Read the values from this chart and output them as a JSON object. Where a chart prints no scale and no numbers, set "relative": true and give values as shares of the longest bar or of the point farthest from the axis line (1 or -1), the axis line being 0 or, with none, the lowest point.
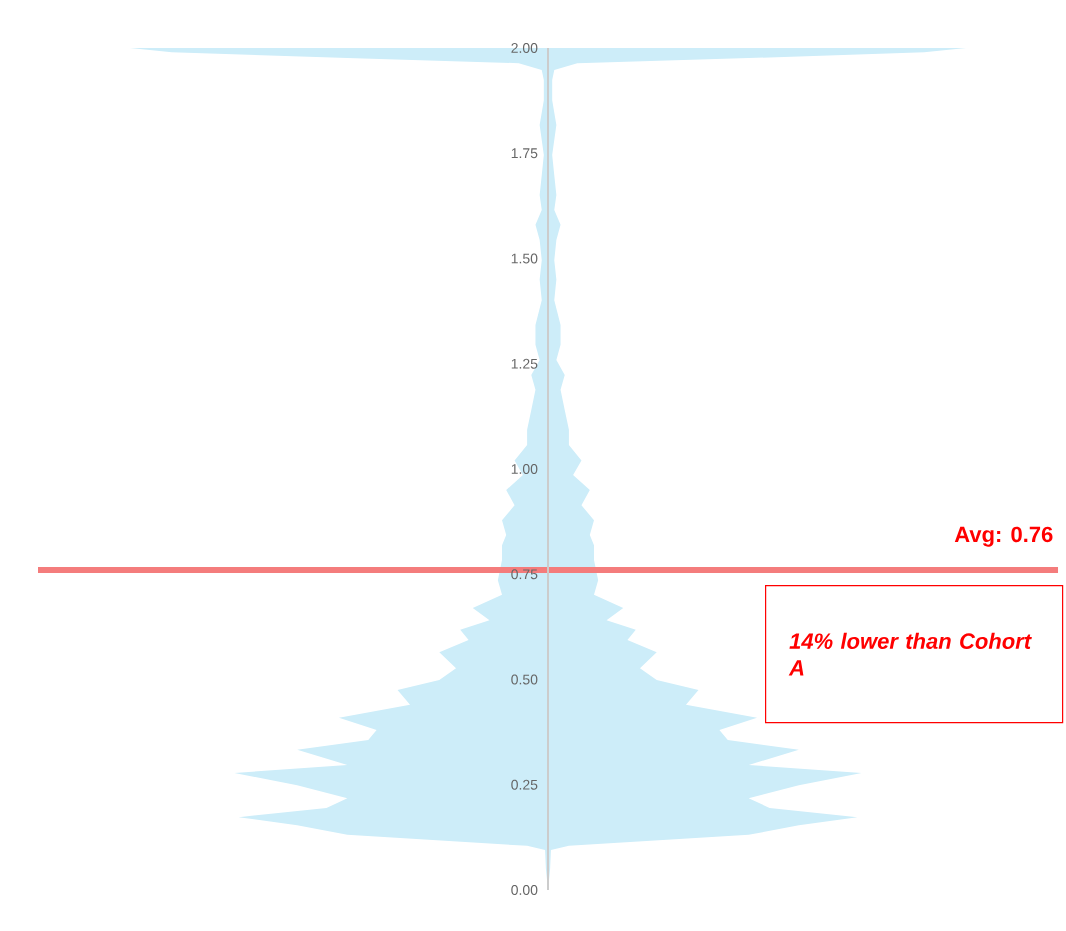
{
  "chart_data": {
    "type": "area",
    "orientation": "horizontal",
    "relative": true,
    "color": "#cdedf9",
    "x": [
      0.0,
      0.05,
      0.095,
      0.105,
      0.131,
      0.154,
      0.173,
      0.195,
      0.218,
      0.249,
      0.278,
      0.297,
      0.333,
      0.356,
      0.38,
      0.409,
      0.44,
      0.475,
      0.499,
      0.527,
      0.565,
      0.594,
      0.618,
      0.641,
      0.67,
      0.701,
      0.736,
      0.784,
      0.819,
      0.843,
      0.878,
      0.914,
      0.95,
      0.986,
      1.02,
      1.057,
      1.093,
      1.14,
      1.188,
      1.223,
      1.259,
      1.295,
      1.342,
      1.401,
      1.45,
      1.496,
      1.544,
      1.58,
      1.615,
      1.651,
      1.698,
      1.746,
      1.817,
      1.876,
      1.924,
      1.948,
      1.964,
      1.976,
      1.99,
      2.0
    ],
    "values": [
      0.0,
      0.005,
      0.007,
      0.05,
      0.48,
      0.6,
      0.74,
      0.53,
      0.48,
      0.6,
      0.75,
      0.48,
      0.6,
      0.43,
      0.41,
      0.5,
      0.33,
      0.36,
      0.26,
      0.22,
      0.26,
      0.19,
      0.21,
      0.14,
      0.18,
      0.11,
      0.12,
      0.11,
      0.11,
      0.1,
      0.11,
      0.08,
      0.1,
      0.06,
      0.08,
      0.05,
      0.05,
      0.04,
      0.03,
      0.04,
      0.02,
      0.03,
      0.03,
      0.015,
      0.02,
      0.015,
      0.02,
      0.03,
      0.015,
      0.02,
      0.015,
      0.01,
      0.02,
      0.01,
      0.01,
      0.015,
      0.07,
      0.48,
      0.9,
      1.0
    ],
    "ylim": [
      0,
      2
    ],
    "yticks": [
      {
        "value": 0,
        "label": "0.00"
      },
      {
        "value": 0.25,
        "label": "0.25"
      },
      {
        "value": 0.5,
        "label": "0.50"
      },
      {
        "value": 0.75,
        "label": "0.75"
      },
      {
        "value": 1,
        "label": "1.00"
      },
      {
        "value": 1.25,
        "label": "1.25"
      },
      {
        "value": 1.5,
        "label": "1.50"
      },
      {
        "value": 1.75,
        "label": "1.75"
      },
      {
        "value": 2,
        "label": "2.00"
      }
    ],
    "ref_lines": [
      {
        "axis": "y",
        "value": 0.76,
        "label": "Avg: 0.76",
        "color": "#f47c7c"
      }
    ],
    "annotations": [
      "14% lower than Cohort A"
    ]
  }
}
